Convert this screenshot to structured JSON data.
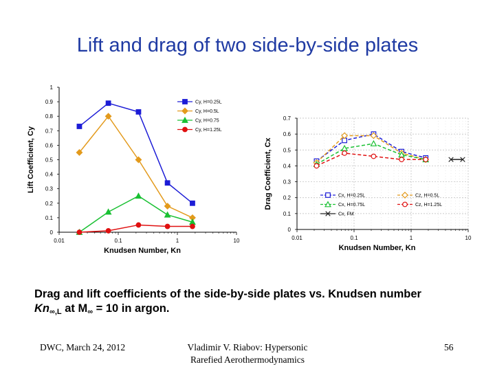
{
  "slide": {
    "title": "Lift and drag of two side-by-side plates",
    "caption": {
      "line1": "Drag and lift coefficients of the side-by-side plates vs. Knudsen number",
      "kn_main": "Kn",
      "kn_sub": "∞,L",
      "at_text": " at M",
      "m_sub": "∞",
      "tail": " = 10 in argon."
    },
    "footer": {
      "left": "DWC, March 24, 2012",
      "mid_line1": "Vladimir V. Riabov: Hypersonic",
      "mid_line2": "Rarefied Aerothermodynamics",
      "page": "56"
    }
  },
  "chart_data": [
    {
      "type": "line",
      "title": "",
      "xlabel": "Knudsen Number, Kn",
      "ylabel": "Lift Coefficient, Cy",
      "xscale": "log",
      "xlim": [
        0.01,
        10
      ],
      "ylim": [
        0,
        1
      ],
      "xticks": [
        0.01,
        0.1,
        1,
        10
      ],
      "xtick_labels": [
        "0.01",
        "0.1",
        "1",
        "10"
      ],
      "yticks": [
        0,
        0.1,
        0.2,
        0.3,
        0.4,
        0.5,
        0.6,
        0.7,
        0.8,
        0.9,
        1
      ],
      "ytick_labels": [
        "0",
        "0.1",
        "0.2",
        "0.3",
        "0.4",
        "0.5",
        "0.6",
        "0.7",
        "0.8",
        "0.9",
        "1"
      ],
      "legend_position": "top-right",
      "series": [
        {
          "name": "Cy, H=0.25L",
          "color": "#1c1cd6",
          "marker": "square",
          "dash": "solid",
          "fill": "filled",
          "x": [
            0.022,
            0.068,
            0.22,
            0.68,
            1.8
          ],
          "y": [
            0.73,
            0.89,
            0.83,
            0.34,
            0.2
          ]
        },
        {
          "name": "Cy, H=0.5L",
          "color": "#e39a1c",
          "marker": "diamond",
          "dash": "solid",
          "fill": "filled",
          "x": [
            0.022,
            0.068,
            0.22,
            0.68,
            1.8
          ],
          "y": [
            0.55,
            0.8,
            0.5,
            0.18,
            0.1
          ]
        },
        {
          "name": "Cy, H=0.75",
          "color": "#19c032",
          "marker": "triangle",
          "dash": "solid",
          "fill": "filled",
          "x": [
            0.022,
            0.068,
            0.22,
            0.68,
            1.8
          ],
          "y": [
            0.0,
            0.14,
            0.25,
            0.12,
            0.07
          ]
        },
        {
          "name": "Cy, H=1.25L",
          "color": "#e01010",
          "marker": "circle",
          "dash": "solid",
          "fill": "filled",
          "x": [
            0.022,
            0.068,
            0.22,
            0.68,
            1.8
          ],
          "y": [
            0.0,
            0.01,
            0.05,
            0.04,
            0.04
          ]
        }
      ]
    },
    {
      "type": "line",
      "title": "",
      "xlabel": "Knudsen Number, Kn",
      "ylabel": "Drag Coefficient, Cx",
      "xscale": "log",
      "xlim": [
        0.01,
        10
      ],
      "ylim": [
        0,
        0.7
      ],
      "xticks": [
        0.01,
        0.1,
        1,
        10
      ],
      "xtick_labels": [
        "0.01",
        "0.1",
        "1",
        "10"
      ],
      "yticks": [
        0,
        0.1,
        0.2,
        0.3,
        0.4,
        0.5,
        0.6,
        0.7
      ],
      "ytick_labels": [
        "0",
        "0.1",
        "0.2",
        "0.3",
        "0.4",
        "0.5",
        "0.6",
        "0.7"
      ],
      "legend_position": "bottom-inside",
      "series": [
        {
          "name": "Cx, H=0.25L",
          "color": "#1c1cd6",
          "marker": "square",
          "dash": "dashed",
          "fill": "open",
          "x": [
            0.022,
            0.068,
            0.22,
            0.68,
            1.8
          ],
          "y": [
            0.43,
            0.56,
            0.6,
            0.49,
            0.45
          ]
        },
        {
          "name": "Cz, H=0.5L",
          "color": "#e39a1c",
          "marker": "diamond",
          "dash": "dashed",
          "fill": "open",
          "x": [
            0.022,
            0.068,
            0.22,
            0.68,
            1.8
          ],
          "y": [
            0.42,
            0.59,
            0.59,
            0.48,
            0.44
          ]
        },
        {
          "name": "Cx, H=0.75L",
          "color": "#19c032",
          "marker": "triangle",
          "dash": "dashed",
          "fill": "open",
          "x": [
            0.022,
            0.068,
            0.22,
            0.68,
            1.8
          ],
          "y": [
            0.41,
            0.51,
            0.54,
            0.47,
            0.44
          ]
        },
        {
          "name": "Cz, H=1.25L",
          "color": "#e01010",
          "marker": "circle",
          "dash": "dashed",
          "fill": "open",
          "x": [
            0.022,
            0.068,
            0.22,
            0.68,
            1.8
          ],
          "y": [
            0.4,
            0.48,
            0.46,
            0.44,
            0.44
          ]
        },
        {
          "name": "Cx, FM",
          "color": "#222222",
          "marker": "x",
          "dash": "solid",
          "fill": "open",
          "x": [
            5,
            8
          ],
          "y": [
            0.44,
            0.44
          ]
        }
      ]
    }
  ]
}
